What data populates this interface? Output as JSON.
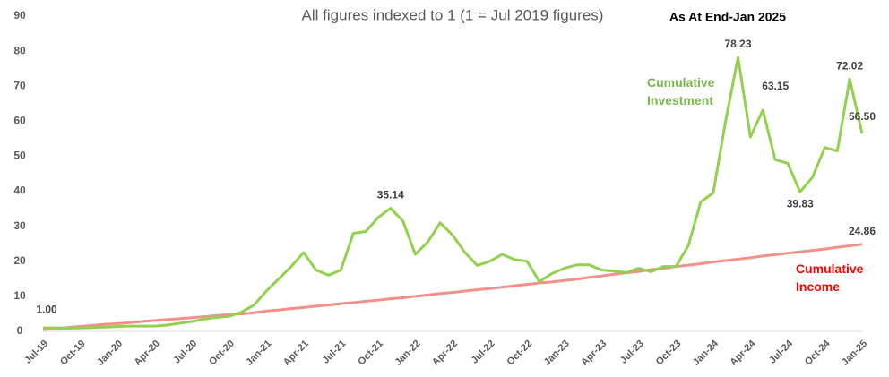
{
  "chart_data": {
    "type": "line",
    "title": "All figures indexed to 1 (1 = Jul 2019 figures)",
    "subtitle": "As At End-Jan 2025",
    "categories": [
      "Jul-19",
      null,
      null,
      "Oct-19",
      null,
      null,
      "Jan-20",
      null,
      null,
      "Apr-20",
      null,
      null,
      "Jul-20",
      null,
      null,
      "Oct-20",
      null,
      null,
      "Jan-21",
      null,
      null,
      "Apr-21",
      null,
      null,
      "Jul-21",
      null,
      null,
      "Oct-21",
      null,
      null,
      "Jan-22",
      null,
      null,
      "Apr-22",
      null,
      null,
      "Jul-22",
      null,
      null,
      "Oct-22",
      null,
      null,
      "Jan-23",
      null,
      null,
      "Apr-23",
      null,
      null,
      "Jul-23",
      null,
      null,
      "Oct-23",
      null,
      null,
      "Jan-24",
      null,
      null,
      "Apr-24",
      null,
      null,
      "Jul-24",
      null,
      null,
      "Oct-24",
      null,
      null,
      "Jan-25"
    ],
    "series": [
      {
        "name": "Cumulative Investment",
        "color": "#92d050",
        "values": [
          1,
          1.0,
          0.9,
          1.0,
          1.1,
          1.2,
          1.4,
          1.5,
          1.5,
          1.5,
          1.8,
          2.3,
          2.8,
          3.5,
          4.0,
          4.3,
          5.5,
          7.5,
          11.5,
          15,
          18.5,
          22.5,
          17.5,
          16,
          17.5,
          28,
          28.5,
          32.5,
          35.14,
          31.5,
          22,
          25.5,
          31,
          27.5,
          22.5,
          18.8,
          20,
          22,
          20.5,
          20,
          14.2,
          16.5,
          18,
          19,
          19,
          17.5,
          17.2,
          16.8,
          18,
          17,
          18.5,
          18.5,
          24.5,
          37,
          39.5,
          60,
          78.23,
          55.5,
          63.15,
          49,
          48,
          39.83,
          44,
          52.5,
          51.5,
          72.02,
          56.5
        ],
        "value_labels": [
          "1.00",
          null,
          null,
          null,
          null,
          null,
          null,
          null,
          null,
          null,
          null,
          null,
          null,
          null,
          null,
          null,
          null,
          null,
          null,
          null,
          null,
          null,
          null,
          null,
          null,
          null,
          null,
          null,
          "35.14",
          null,
          null,
          null,
          null,
          null,
          null,
          null,
          null,
          null,
          null,
          null,
          null,
          null,
          null,
          null,
          null,
          null,
          null,
          null,
          null,
          null,
          null,
          null,
          null,
          null,
          null,
          null,
          "78.23",
          null,
          "63.15",
          null,
          null,
          "39.83",
          null,
          null,
          null,
          "72.02",
          "56.50"
        ]
      },
      {
        "name": "Cumulative Income",
        "color": "#f4908a",
        "label_color": "#ff0000",
        "values": [
          0.5,
          0.8,
          1.1,
          1.4,
          1.7,
          2.0,
          2.2,
          2.5,
          2.8,
          3.1,
          3.4,
          3.6,
          3.9,
          4.2,
          4.5,
          4.8,
          5.0,
          5.3,
          5.8,
          6.1,
          6.5,
          6.8,
          7.2,
          7.5,
          7.9,
          8.2,
          8.6,
          8.9,
          9.3,
          9.6,
          10.0,
          10.4,
          10.8,
          11.1,
          11.5,
          11.9,
          12.2,
          12.6,
          13.0,
          13.4,
          13.8,
          14.1,
          14.5,
          14.9,
          15.4,
          15.8,
          16.3,
          16.7,
          17.1,
          17.6,
          18.0,
          18.5,
          18.9,
          19.3,
          19.8,
          20.2,
          20.6,
          21.0,
          21.5,
          21.9,
          22.3,
          22.7,
          23.1,
          23.5,
          24.0,
          24.4,
          24.86
        ],
        "value_labels": [
          null,
          null,
          null,
          null,
          null,
          null,
          null,
          null,
          null,
          null,
          null,
          null,
          null,
          null,
          null,
          null,
          null,
          null,
          null,
          null,
          null,
          null,
          null,
          null,
          null,
          null,
          null,
          null,
          null,
          null,
          null,
          null,
          null,
          null,
          null,
          null,
          null,
          null,
          null,
          null,
          null,
          null,
          null,
          null,
          null,
          null,
          null,
          null,
          null,
          null,
          null,
          null,
          null,
          null,
          null,
          null,
          null,
          null,
          null,
          null,
          null,
          null,
          null,
          null,
          null,
          null,
          "24.86"
        ]
      }
    ],
    "ylim": [
      0,
      90
    ],
    "yticks": [
      0,
      10,
      20,
      30,
      40,
      50,
      60,
      70,
      80,
      90
    ],
    "grid": false
  }
}
